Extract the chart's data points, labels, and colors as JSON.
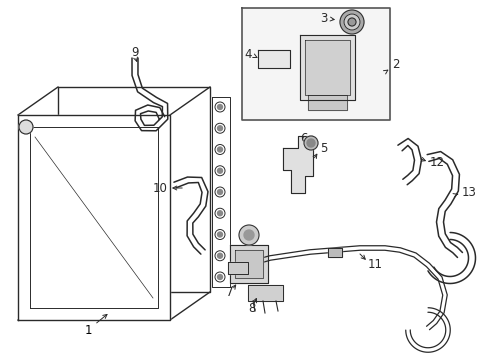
{
  "background_color": "#ffffff",
  "line_color": "#2a2a2a",
  "label_color": "#000000",
  "figsize": [
    4.89,
    3.6
  ],
  "dpi": 100
}
